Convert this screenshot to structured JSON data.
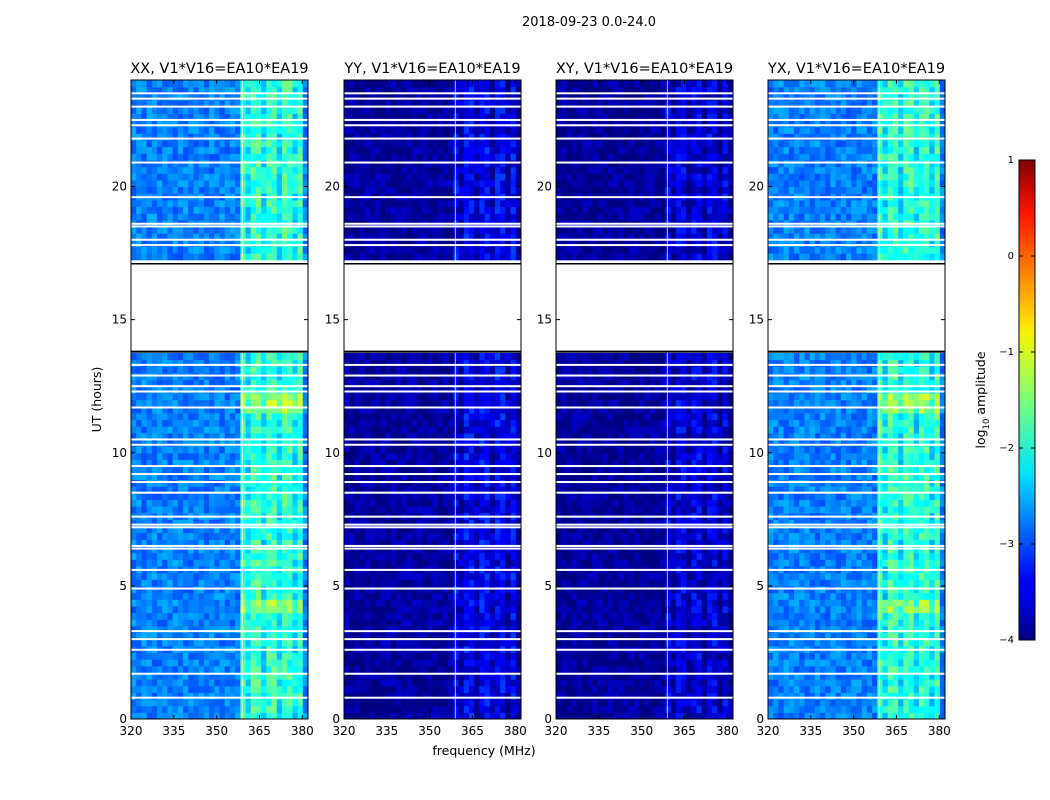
{
  "figure": {
    "suptitle": "2018-09-23 0.0-24.0"
  },
  "chart_data": {
    "type": "heatmap",
    "xlabel": "frequency (MHz)",
    "ylabel": "UT (hours)",
    "xlim": [
      320,
      382
    ],
    "ylim": [
      0,
      24
    ],
    "xticks": [
      320,
      335,
      350,
      365,
      380
    ],
    "yticks": [
      0,
      5,
      10,
      15,
      20
    ],
    "rfi_band_mhz": [
      359,
      380
    ],
    "gap_hours": [
      13.8,
      17.1
    ],
    "flagged_rows_hours": [
      0.8,
      1.7,
      2.6,
      3.0,
      3.3,
      4.9,
      5.6,
      6.4,
      6.5,
      7.2,
      7.3,
      7.6,
      8.5,
      8.9,
      9.2,
      9.5,
      10.3,
      10.5,
      11.7,
      12.3,
      12.5,
      12.9,
      13.3,
      17.1,
      17.8,
      18.0,
      18.5,
      18.6,
      19.6,
      20.9,
      21.8,
      22.3,
      22.5,
      23.0,
      23.3,
      23.5
    ],
    "panels": [
      {
        "title": "XX, V1*V16=EA10*EA19",
        "pol": "XX",
        "baseline": "V1*V16",
        "antennas": "EA10*EA19",
        "base_level": -2.75,
        "band_level": -1.85,
        "show_ylabel": true
      },
      {
        "title": "YY, V1*V16=EA10*EA19",
        "pol": "YY",
        "baseline": "V1*V16",
        "antennas": "EA10*EA19",
        "base_level": -3.85,
        "band_level": -3.4,
        "show_ylabel": false
      },
      {
        "title": "XY, V1*V16=EA10*EA19",
        "pol": "XY",
        "baseline": "V1*V16",
        "antennas": "EA10*EA19",
        "base_level": -3.88,
        "band_level": -3.5,
        "show_ylabel": false
      },
      {
        "title": "YX, V1*V16=EA10*EA19",
        "pol": "YX",
        "baseline": "V1*V16",
        "antennas": "EA10*EA19",
        "base_level": -2.75,
        "band_level": -1.85,
        "show_ylabel": false
      }
    ],
    "colorbar": {
      "label": "log10 amplitude",
      "label_main": "log",
      "label_sub": "10",
      "label_rest": " amplitude",
      "range": [
        -4,
        1
      ],
      "ticks": [
        "1",
        "0",
        "−1",
        "−2",
        "−3",
        "−4"
      ],
      "colormap": "jet"
    }
  }
}
